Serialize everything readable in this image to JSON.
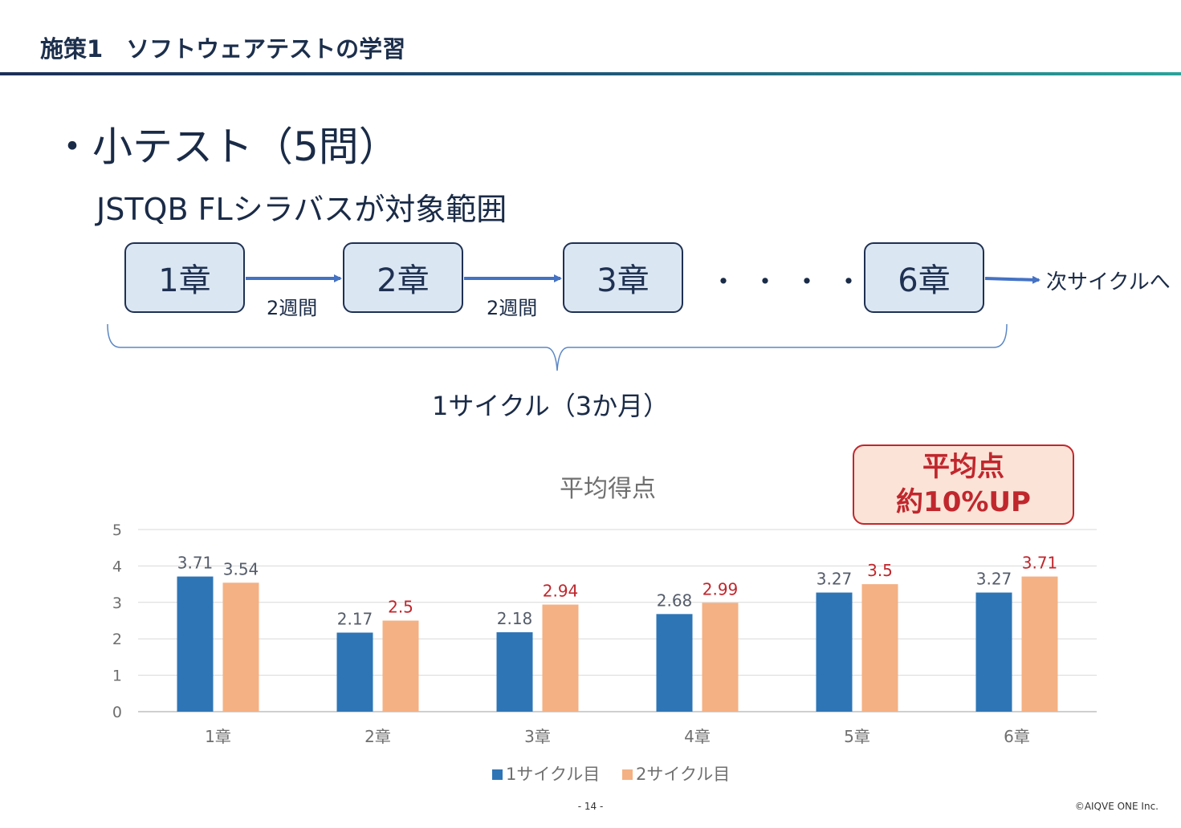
{
  "header": {
    "title": "施策1　ソフトウェアテストの学習"
  },
  "heading": "・小テスト（5問）",
  "subheading": "JSTQB FLシラバスが対象範囲",
  "flow": {
    "chapters": [
      "1章",
      "2章",
      "3章",
      "6章"
    ],
    "interval_label": "2週間",
    "ellipsis": "・・・・",
    "next_label": "次サイクルへ",
    "cycle_label": "1サイクル（3か月）"
  },
  "callout": {
    "line1": "平均点",
    "line2": "約10%UP"
  },
  "colors": {
    "series1": "#2e75b6",
    "series2": "#f4b183",
    "accent_red": "#c0272d",
    "box_fill": "#dbe6f3"
  },
  "chart_data": {
    "type": "bar",
    "title": "平均得点",
    "categories": [
      "1章",
      "2章",
      "3章",
      "4章",
      "5章",
      "6章"
    ],
    "series": [
      {
        "name": "1サイクル目",
        "values": [
          3.71,
          2.17,
          2.18,
          2.68,
          3.27,
          3.27
        ],
        "labels": [
          "3.71",
          "2.17",
          "2.18",
          "2.68",
          "3.27",
          "3.27"
        ]
      },
      {
        "name": "2サイクル目",
        "values": [
          3.54,
          2.5,
          2.94,
          2.99,
          3.5,
          3.71
        ],
        "labels": [
          "3.54",
          "2.5",
          "2.94",
          "2.99",
          "3.5",
          "3.71"
        ]
      }
    ],
    "ylim": [
      0,
      5
    ],
    "yticks": [
      "0",
      "1",
      "2",
      "3",
      "4",
      "5"
    ],
    "grid": true,
    "legend_position": "bottom"
  },
  "footer": {
    "page": "- 14 -",
    "copyright": "©AIQVE ONE Inc."
  }
}
